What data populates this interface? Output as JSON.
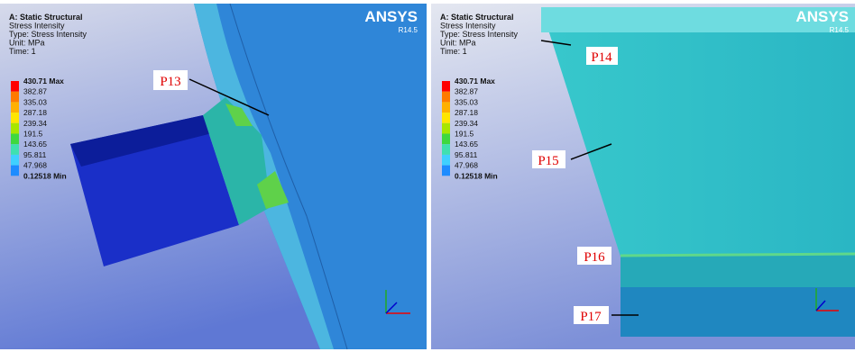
{
  "panels": [
    {
      "header": [
        "A: Static Structural",
        "Stress Intensity",
        "Type: Stress Intensity",
        "Unit: MPa",
        "Time: 1"
      ],
      "brand": "ANSYS",
      "version": "R14.5",
      "legend": [
        "430.71 Max",
        "382.87",
        "335.03",
        "287.18",
        "239.34",
        "191.5",
        "143.65",
        "95.811",
        "47.968",
        "0.12518 Min"
      ],
      "points": [
        "P13"
      ]
    },
    {
      "header": [
        "A: Static Structural",
        "Stress Intensity",
        "Type: Stress Intensity",
        "Unit: MPa",
        "Time: 1"
      ],
      "brand": "ANSYS",
      "version": "R14.5",
      "legend": [
        "430.71 Max",
        "382.87",
        "335.03",
        "287.18",
        "239.34",
        "191.5",
        "143.65",
        "95.811",
        "47.968",
        "0.12518 Min"
      ],
      "points": [
        "P14",
        "P15",
        "P16",
        "P17"
      ]
    }
  ]
}
